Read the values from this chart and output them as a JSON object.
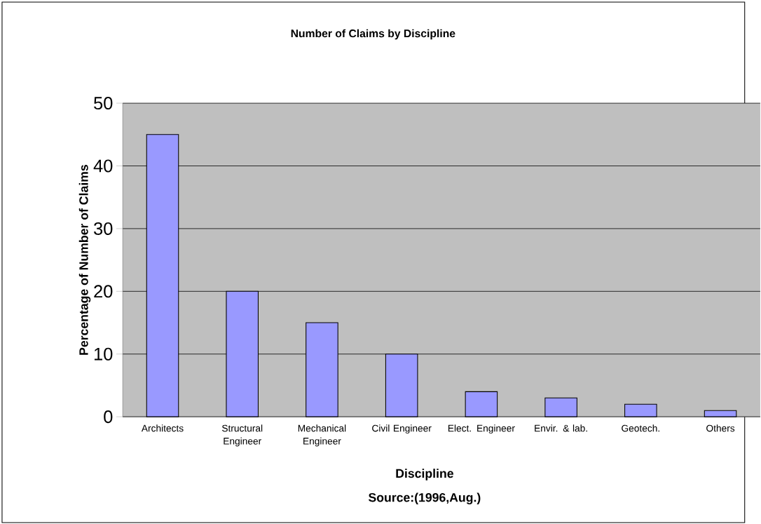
{
  "chart_data": {
    "type": "bar",
    "title": "Number of Claims by Discipline",
    "xlabel": "Discipline",
    "ylabel": "Percentage of Number of Claims",
    "annotations": [
      "Source:(1996,Aug.)"
    ],
    "categories": [
      "Architects",
      "Structural Engineer",
      "Mechanical Engineer",
      "Civil Engineer",
      "Elect. Engineer",
      "Envir. & lab.",
      "Geotech.",
      "Others"
    ],
    "values": [
      45,
      20,
      15,
      10,
      4,
      3,
      2,
      1
    ],
    "color": "#9999ff",
    "ylim": [
      0,
      50
    ],
    "yticks": [
      0,
      10,
      20,
      30,
      40,
      50
    ],
    "grid": "y"
  }
}
